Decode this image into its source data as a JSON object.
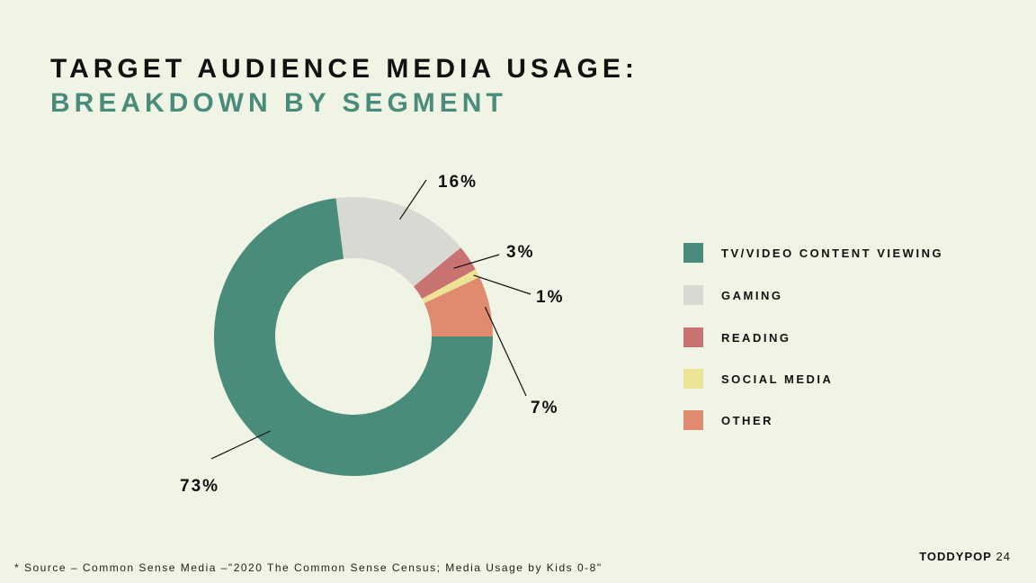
{
  "title": {
    "line1": "TARGET AUDIENCE MEDIA USAGE:",
    "line2": "BREAKDOWN BY SEGMENT"
  },
  "chart_data": {
    "type": "pie",
    "donut": true,
    "title": "TARGET AUDIENCE MEDIA USAGE: BREAKDOWN BY SEGMENT",
    "legend_position": "right",
    "categories": [
      "TV/VIDEO CONTENT VIEWING",
      "GAMING",
      "READING",
      "SOCIAL MEDIA",
      "OTHER"
    ],
    "values": [
      73,
      16,
      3,
      1,
      7
    ],
    "labels": [
      "73%",
      "16%",
      "3%",
      "1%",
      "7%"
    ],
    "colors": [
      "#4a8c7b",
      "#d9d9d4",
      "#c87371",
      "#ece394",
      "#e08b70"
    ]
  },
  "legend": {
    "items": [
      {
        "label": "TV/VIDEO CONTENT VIEWING",
        "color": "#4a8c7b"
      },
      {
        "label": "GAMING",
        "color": "#d9d9d4"
      },
      {
        "label": "READING",
        "color": "#c87371"
      },
      {
        "label": "SOCIAL MEDIA",
        "color": "#ece394"
      },
      {
        "label": "OTHER",
        "color": "#e08b70"
      }
    ]
  },
  "source": "* Source –  Common Sense Media –\"2020 The Common Sense Census; Media Usage by Kids 0-8\"",
  "footer": {
    "brand": "TODDYPOP",
    "page_number": "24"
  }
}
